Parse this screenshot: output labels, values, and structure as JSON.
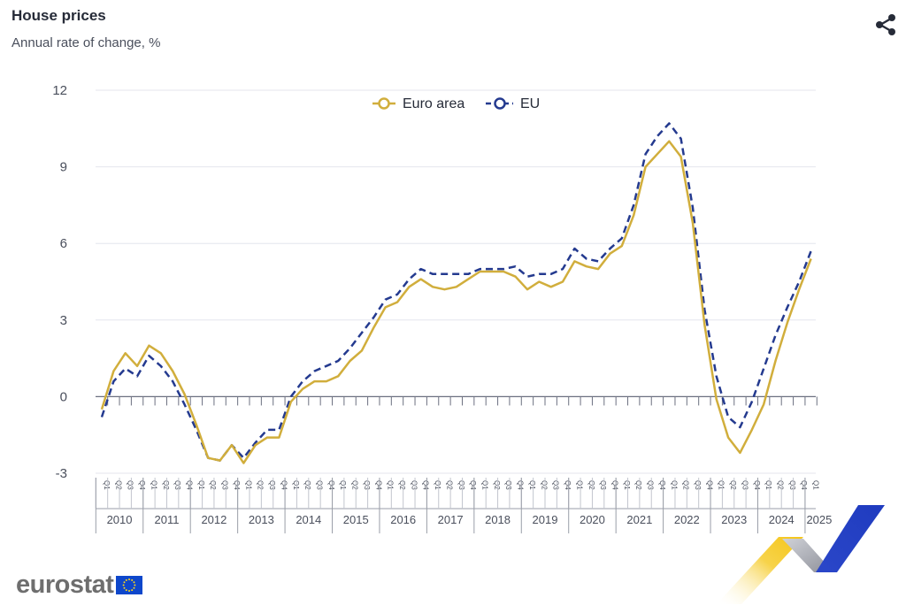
{
  "header": {
    "title": "House prices",
    "subtitle": "Annual rate of change, %"
  },
  "icons": {
    "share": "share-icon"
  },
  "footer": {
    "logo_text": "eurostat"
  },
  "colors": {
    "euro_area": "#d1ae3c",
    "eu": "#243a8f",
    "grid": "#e4e6ee"
  },
  "chart_data": {
    "type": "line",
    "title": "House prices",
    "subtitle": "Annual rate of change, %",
    "xlabel": "",
    "ylabel": "",
    "ylim": [
      -3,
      12
    ],
    "yticks": [
      12,
      9,
      6,
      3,
      0,
      -3
    ],
    "grid": true,
    "legend": "top-center",
    "quarters": [
      "Q1",
      "Q2",
      "Q3",
      "Q4"
    ],
    "years": [
      "2010",
      "2011",
      "2012",
      "2013",
      "2014",
      "2015",
      "2016",
      "2017",
      "2018",
      "2019",
      "2020",
      "2021",
      "2022",
      "2023",
      "2024",
      "2025"
    ],
    "x_start": "2010-Q1",
    "series": [
      {
        "name": "Euro area",
        "style": "solid",
        "values": [
          -0.5,
          1.0,
          1.7,
          1.2,
          2.0,
          1.7,
          1.0,
          0.1,
          -1.1,
          -2.4,
          -2.5,
          -1.9,
          -2.6,
          -1.9,
          -1.6,
          -1.6,
          -0.2,
          0.3,
          0.6,
          0.6,
          0.8,
          1.4,
          1.8,
          2.7,
          3.5,
          3.7,
          4.3,
          4.6,
          4.3,
          4.2,
          4.3,
          4.6,
          4.9,
          4.9,
          4.9,
          4.7,
          4.2,
          4.5,
          4.3,
          4.5,
          5.3,
          5.1,
          5.0,
          5.6,
          5.9,
          7.1,
          9.0,
          9.5,
          10.0,
          9.4,
          6.8,
          2.8,
          -0.1,
          -1.6,
          -2.2,
          -1.3,
          -0.3,
          1.4,
          2.9,
          4.2,
          5.4
        ]
      },
      {
        "name": "EU",
        "style": "dashed",
        "values": [
          -0.8,
          0.6,
          1.1,
          0.8,
          1.6,
          1.2,
          0.6,
          -0.3,
          -1.3,
          -2.4,
          -2.5,
          -1.9,
          -2.4,
          -1.8,
          -1.3,
          -1.3,
          0.0,
          0.6,
          1.0,
          1.2,
          1.4,
          1.9,
          2.5,
          3.1,
          3.8,
          4.0,
          4.6,
          5.0,
          4.8,
          4.8,
          4.8,
          4.8,
          5.0,
          5.0,
          5.0,
          5.1,
          4.7,
          4.8,
          4.8,
          5.0,
          5.8,
          5.4,
          5.3,
          5.8,
          6.2,
          7.5,
          9.5,
          10.2,
          10.7,
          10.1,
          7.4,
          3.4,
          0.8,
          -0.8,
          -1.2,
          -0.2,
          1.1,
          2.4,
          3.5,
          4.5,
          5.7
        ]
      }
    ]
  }
}
